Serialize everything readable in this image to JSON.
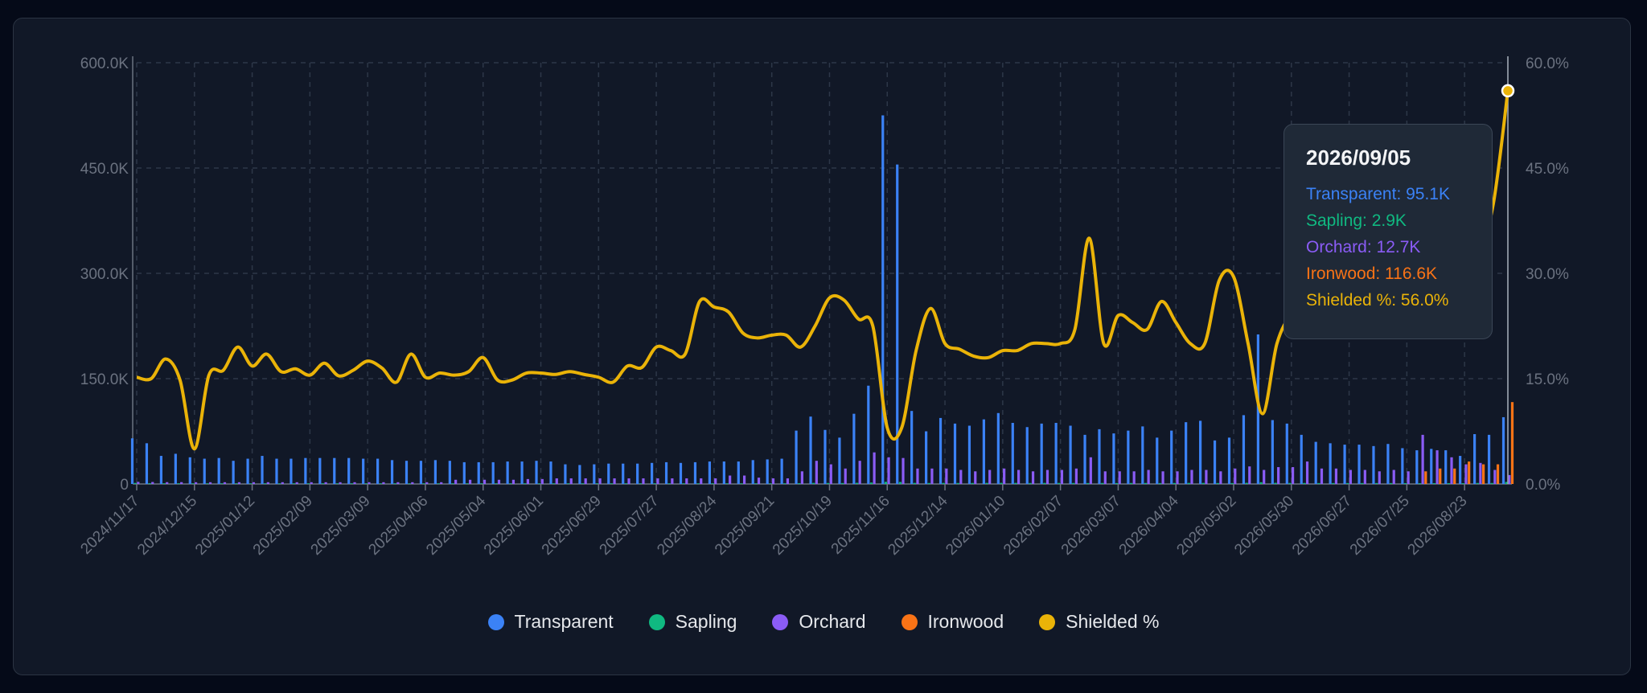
{
  "colors": {
    "transparent": "#3b82f6",
    "sapling": "#10b981",
    "orchard": "#8b5cf6",
    "ironwood": "#f97316",
    "shielded": "#eab308",
    "grid": "#2d3748",
    "axis_text": "#6b7280"
  },
  "legend": [
    {
      "label": "Transparent",
      "color": "#3b82f6"
    },
    {
      "label": "Sapling",
      "color": "#10b981"
    },
    {
      "label": "Orchard",
      "color": "#8b5cf6"
    },
    {
      "label": "Ironwood",
      "color": "#f97316"
    },
    {
      "label": "Shielded %",
      "color": "#eab308"
    }
  ],
  "tooltip": {
    "date": "2026/09/05",
    "lines": [
      {
        "text": "Transparent: 95.1K",
        "color": "#3b82f6"
      },
      {
        "text": "Sapling: 2.9K",
        "color": "#10b981"
      },
      {
        "text": "Orchard: 12.7K",
        "color": "#8b5cf6"
      },
      {
        "text": "Ironwood: 116.6K",
        "color": "#f97316"
      },
      {
        "text": "Shielded %: 56.0%",
        "color": "#eab308"
      }
    ]
  },
  "chart_data": {
    "type": "bar",
    "title": "",
    "xlabel": "",
    "ylabel": "",
    "ylim": [
      0,
      600000
    ],
    "y2lim": [
      0,
      60
    ],
    "y_ticks": [
      "0",
      "150.0K",
      "300.0K",
      "450.0K",
      "600.0K"
    ],
    "y2_ticks": [
      "0.0%",
      "15.0%",
      "30.0%",
      "45.0%",
      "60.0%"
    ],
    "x_ticks": [
      "2024/11/17",
      "2024/12/15",
      "2025/01/12",
      "2025/02/09",
      "2025/03/09",
      "2025/04/06",
      "2025/05/04",
      "2025/06/01",
      "2025/06/29",
      "2025/07/27",
      "2025/08/24",
      "2025/09/21",
      "2025/10/19",
      "2025/11/16",
      "2025/12/14",
      "2026/01/10",
      "2026/02/07",
      "2026/03/07",
      "2026/04/04",
      "2026/05/02",
      "2026/05/30",
      "2026/06/27",
      "2026/07/25",
      "2026/08/23"
    ],
    "grid": true,
    "legend_position": "bottom-center",
    "series": [
      {
        "name": "Transparent",
        "axis": "left",
        "kind": "bar",
        "values": [
          65000,
          58000,
          40000,
          43000,
          38000,
          36000,
          37000,
          33000,
          36000,
          40000,
          36000,
          36000,
          37000,
          37000,
          37000,
          37000,
          36000,
          36000,
          34000,
          33000,
          33000,
          34000,
          33000,
          31000,
          31000,
          31000,
          32000,
          32000,
          33000,
          32000,
          28000,
          27000,
          28000,
          29000,
          29000,
          29000,
          30000,
          31000,
          30000,
          31000,
          32000,
          32000,
          32000,
          34000,
          35000,
          36000,
          76000,
          96000,
          77000,
          66000,
          100000,
          140000,
          525000,
          455000,
          104000,
          75000,
          94000,
          86000,
          83000,
          92000,
          101000,
          87000,
          81000,
          86000,
          87000,
          83000,
          70000,
          78000,
          72000,
          76000,
          82000,
          66000,
          76000,
          88000,
          90000,
          62000,
          66000,
          98000,
          213000,
          91000,
          86000,
          70000,
          60000,
          58000,
          56000,
          56000,
          54000,
          57000,
          51000,
          48000,
          50000,
          48000,
          40000,
          71000,
          70000,
          95100
        ]
      },
      {
        "name": "Sapling",
        "axis": "left",
        "kind": "bar",
        "values": [
          1500,
          1200,
          1000,
          1000,
          900,
          900,
          900,
          900,
          900,
          900,
          900,
          900,
          900,
          900,
          900,
          900,
          900,
          900,
          900,
          900,
          900,
          900,
          900,
          900,
          900,
          900,
          900,
          900,
          900,
          900,
          900,
          900,
          900,
          900,
          900,
          900,
          900,
          900,
          900,
          900,
          900,
          900,
          900,
          900,
          900,
          900,
          1200,
          1500,
          1400,
          1300,
          1600,
          2000,
          3000,
          2800,
          1500,
          1400,
          1500,
          1400,
          1400,
          1500,
          1600,
          1500,
          1400,
          1500,
          1500,
          1400,
          1300,
          1400,
          1300,
          1400,
          1400,
          1300,
          1400,
          1500,
          1500,
          1300,
          1300,
          1600,
          2500,
          1600,
          1500,
          1400,
          1300,
          1300,
          1300,
          1300,
          1300,
          1300,
          1200,
          1200,
          1200,
          1200,
          1100,
          1400,
          1400,
          2900
        ]
      },
      {
        "name": "Orchard",
        "axis": "left",
        "kind": "bar",
        "values": [
          3000,
          2800,
          2600,
          2600,
          2500,
          2500,
          2500,
          2500,
          2500,
          2500,
          2500,
          2500,
          2500,
          2500,
          2500,
          2500,
          2500,
          2500,
          2500,
          2500,
          2500,
          2500,
          6000,
          6000,
          6000,
          6000,
          6000,
          7000,
          7000,
          8000,
          8000,
          8000,
          8000,
          8000,
          8000,
          8000,
          8000,
          8000,
          8000,
          8000,
          8000,
          12000,
          12000,
          9000,
          8000,
          8000,
          18000,
          33000,
          28000,
          22000,
          33000,
          45000,
          38000,
          37000,
          22000,
          22000,
          22000,
          20000,
          18000,
          20000,
          22000,
          20000,
          18000,
          20000,
          20000,
          22000,
          38000,
          18000,
          18000,
          18000,
          20000,
          18000,
          18000,
          20000,
          20000,
          18000,
          22000,
          25000,
          20000,
          24000,
          24000,
          32000,
          22000,
          22000,
          20000,
          20000,
          18000,
          20000,
          18000,
          70000,
          48000,
          38000,
          28000,
          30000,
          20000,
          12700
        ]
      },
      {
        "name": "Ironwood",
        "axis": "left",
        "kind": "bar",
        "values": [
          0,
          0,
          0,
          0,
          0,
          0,
          0,
          0,
          0,
          0,
          0,
          0,
          0,
          0,
          0,
          0,
          0,
          0,
          0,
          0,
          0,
          0,
          0,
          0,
          0,
          0,
          0,
          0,
          0,
          0,
          0,
          0,
          0,
          0,
          0,
          0,
          0,
          0,
          0,
          0,
          0,
          0,
          0,
          0,
          0,
          0,
          0,
          0,
          0,
          0,
          0,
          0,
          0,
          0,
          0,
          0,
          0,
          0,
          0,
          0,
          0,
          0,
          0,
          0,
          0,
          0,
          0,
          0,
          0,
          0,
          0,
          0,
          0,
          0,
          0,
          0,
          0,
          0,
          0,
          0,
          0,
          0,
          0,
          0,
          0,
          0,
          0,
          0,
          0,
          18000,
          22000,
          22000,
          32000,
          28000,
          28000,
          116600
        ]
      },
      {
        "name": "Shielded %",
        "axis": "right",
        "kind": "line",
        "values": [
          15.2,
          15.0,
          17.8,
          14.8,
          5.0,
          15.5,
          16.2,
          19.5,
          16.8,
          18.5,
          16.0,
          16.4,
          15.5,
          17.2,
          15.4,
          16.2,
          17.5,
          16.5,
          14.5,
          18.5,
          15.2,
          15.8,
          15.5,
          16.0,
          18.0,
          14.8,
          14.8,
          15.8,
          15.8,
          15.6,
          16.0,
          15.6,
          15.2,
          14.5,
          16.8,
          16.6,
          19.5,
          19.0,
          18.5,
          26.0,
          25.2,
          24.5,
          21.5,
          20.8,
          21.2,
          21.2,
          19.5,
          22.5,
          26.5,
          26.2,
          23.5,
          22.5,
          8.0,
          8.0,
          19.0,
          25.0,
          20.0,
          19.2,
          18.2,
          18.0,
          19.0,
          19.0,
          20.0,
          20.0,
          20.0,
          22.0,
          35.0,
          20.0,
          24.0,
          23.0,
          22.0,
          26.0,
          23.0,
          20.0,
          20.0,
          29.0,
          29.5,
          20.0,
          10.0,
          20.0,
          24.0,
          24.0,
          25.0,
          26.0,
          27.0,
          28.0,
          29.0,
          30.0,
          31.0,
          32.0,
          33.0,
          33.0,
          33.0,
          33.0,
          40.0,
          56.0
        ]
      }
    ]
  }
}
